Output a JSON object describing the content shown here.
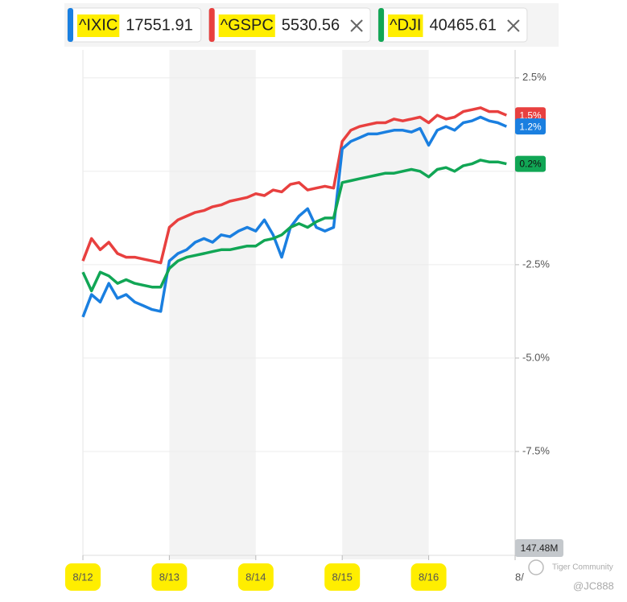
{
  "tabs": [
    {
      "symbol": "^IXIC",
      "price": 17551.91,
      "closable": false
    },
    {
      "symbol": "^GSPC",
      "price": 5530.56,
      "closable": true
    },
    {
      "symbol": "^DJI",
      "price": 40465.61,
      "closable": true
    }
  ],
  "chart_data": {
    "type": "line",
    "x": [
      0,
      1,
      2,
      3,
      4,
      5,
      6,
      7,
      8,
      9,
      10,
      11,
      12,
      13,
      14,
      15,
      16,
      17,
      18,
      19,
      20,
      21,
      22,
      23,
      24,
      25,
      26,
      27,
      28,
      29,
      30,
      31,
      32,
      33,
      34,
      35,
      36,
      37,
      38,
      39,
      40,
      41,
      42,
      43,
      44,
      45,
      46,
      47,
      48,
      49
    ],
    "xlim": [
      0,
      50
    ],
    "xticks": [
      {
        "value": 0,
        "label": "8/12"
      },
      {
        "value": 10,
        "label": "8/13"
      },
      {
        "value": 20,
        "label": "8/14"
      },
      {
        "value": 30,
        "label": "8/15"
      },
      {
        "value": 40,
        "label": "8/16"
      },
      {
        "value": 50,
        "label": "8/"
      }
    ],
    "ylim": [
      -10,
      3.25
    ],
    "yticks": [
      {
        "value": 2.5,
        "label": "2.5%"
      },
      {
        "value": 0,
        "label": null
      },
      {
        "value": -2.5,
        "label": "-2.5%"
      },
      {
        "value": -5,
        "label": "-5.0%"
      },
      {
        "value": -7.5,
        "label": "-7.5%"
      }
    ],
    "grid": true,
    "volume_label": "147.48M",
    "series": [
      {
        "name": "^GSPC",
        "color": "#e8403f",
        "last_label": "1.5%",
        "values": [
          -2.4,
          -1.8,
          -2.1,
          -1.9,
          -2.2,
          -2.3,
          -2.3,
          -2.35,
          -2.4,
          -2.45,
          -1.5,
          -1.3,
          -1.2,
          -1.1,
          -1.05,
          -0.95,
          -0.9,
          -0.8,
          -0.75,
          -0.7,
          -0.6,
          -0.65,
          -0.5,
          -0.55,
          -0.35,
          -0.3,
          -0.5,
          -0.45,
          -0.4,
          -0.45,
          0.8,
          1.1,
          1.2,
          1.25,
          1.3,
          1.3,
          1.4,
          1.35,
          1.4,
          1.45,
          1.3,
          1.5,
          1.4,
          1.45,
          1.6,
          1.65,
          1.7,
          1.6,
          1.6,
          1.5
        ]
      },
      {
        "name": "^IXIC",
        "color": "#1a7fe0",
        "last_label": "1.2%",
        "values": [
          -3.9,
          -3.3,
          -3.5,
          -3.0,
          -3.4,
          -3.3,
          -3.5,
          -3.6,
          -3.7,
          -3.75,
          -2.4,
          -2.2,
          -2.1,
          -1.9,
          -1.8,
          -1.9,
          -1.7,
          -1.75,
          -1.6,
          -1.5,
          -1.6,
          -1.3,
          -1.7,
          -2.3,
          -1.5,
          -1.2,
          -1.0,
          -1.5,
          -1.6,
          -1.5,
          0.6,
          0.8,
          0.9,
          1.0,
          1.0,
          1.05,
          1.1,
          1.1,
          1.05,
          1.15,
          0.7,
          1.1,
          1.2,
          1.1,
          1.3,
          1.35,
          1.45,
          1.35,
          1.3,
          1.2
        ]
      },
      {
        "name": "^DJI",
        "color": "#11a655",
        "last_label": "0.2%",
        "values": [
          -2.7,
          -3.2,
          -2.7,
          -2.8,
          -3.0,
          -2.9,
          -3.0,
          -3.05,
          -3.1,
          -3.1,
          -2.6,
          -2.4,
          -2.3,
          -2.25,
          -2.2,
          -2.15,
          -2.1,
          -2.1,
          -2.05,
          -2.0,
          -2.0,
          -1.85,
          -1.8,
          -1.7,
          -1.5,
          -1.4,
          -1.5,
          -1.35,
          -1.25,
          -1.25,
          -0.3,
          -0.25,
          -0.2,
          -0.15,
          -0.1,
          -0.05,
          -0.05,
          0,
          0.05,
          0.0,
          -0.15,
          0.05,
          0.1,
          0.0,
          0.15,
          0.2,
          0.3,
          0.25,
          0.25,
          0.2
        ]
      }
    ]
  },
  "watermark": {
    "brand": "Tiger Community",
    "user": "@JC888"
  }
}
